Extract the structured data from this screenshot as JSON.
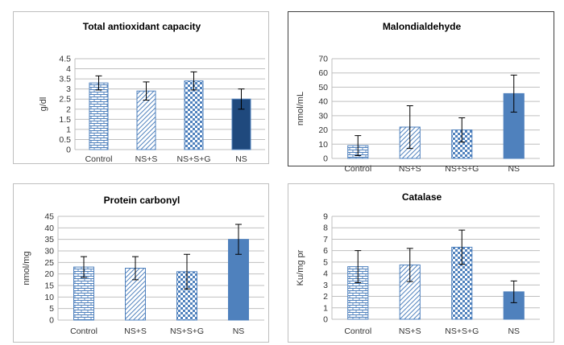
{
  "chart_data": [
    {
      "type": "bar",
      "title": "Total antioxidant capacity",
      "ylabel": "g/dl",
      "xlabel": "",
      "categories": [
        "Control",
        "NS+S",
        "NS+S+G",
        "NS"
      ],
      "values": [
        3.3,
        2.9,
        3.4,
        2.5
      ],
      "errors": [
        0.35,
        0.45,
        0.45,
        0.5
      ],
      "ylim": [
        0,
        4.5
      ],
      "yticks": [
        "0",
        "0.5",
        "1",
        "1.5",
        "2",
        "2.5",
        "3",
        "3.5",
        "4",
        "4.5"
      ],
      "grid": true
    },
    {
      "type": "bar",
      "title": "Malondialdehyde",
      "ylabel": "nmol/mL",
      "xlabel": "",
      "categories": [
        "Control",
        "NS+S",
        "NS+S+G",
        "NS"
      ],
      "values": [
        9,
        22,
        20,
        45.5
      ],
      "errors": [
        7,
        15,
        8.5,
        13
      ],
      "ylim": [
        0,
        70
      ],
      "yticks": [
        "0",
        "10",
        "20",
        "30",
        "40",
        "50",
        "60",
        "70"
      ],
      "grid": true
    },
    {
      "type": "bar",
      "title": "Protein carbonyl",
      "ylabel": "nmol/mg",
      "xlabel": "",
      "categories": [
        "Control",
        "NS+S",
        "NS+S+G",
        "NS"
      ],
      "values": [
        23,
        22.5,
        21,
        35
      ],
      "errors": [
        4.5,
        5,
        7.5,
        6.5
      ],
      "ylim": [
        0,
        45
      ],
      "yticks": [
        "0",
        "5",
        "10",
        "15",
        "20",
        "25",
        "30",
        "35",
        "40",
        "45"
      ],
      "grid": true
    },
    {
      "type": "bar",
      "title": "Catalase",
      "ylabel": "Ku/mg pr",
      "xlabel": "",
      "categories": [
        "Control",
        "NS+S",
        "NS+S+G",
        "NS"
      ],
      "values": [
        4.6,
        4.75,
        6.3,
        2.4
      ],
      "errors": [
        1.4,
        1.45,
        1.5,
        0.95
      ],
      "ylim": [
        0,
        9
      ],
      "yticks": [
        "0",
        "1",
        "2",
        "3",
        "4",
        "5",
        "6",
        "7",
        "8",
        "9"
      ],
      "grid": true
    }
  ],
  "colors": {
    "bar_outline": "#4f81bd",
    "pattern_fill": "#4f81bd",
    "ns_bar_panel1": "#1f497d",
    "ns_bar_other": "#4f81bd",
    "grid": "#bfbfbf",
    "frame": "#bfbfbf",
    "frame_emphasis": "#404040"
  }
}
